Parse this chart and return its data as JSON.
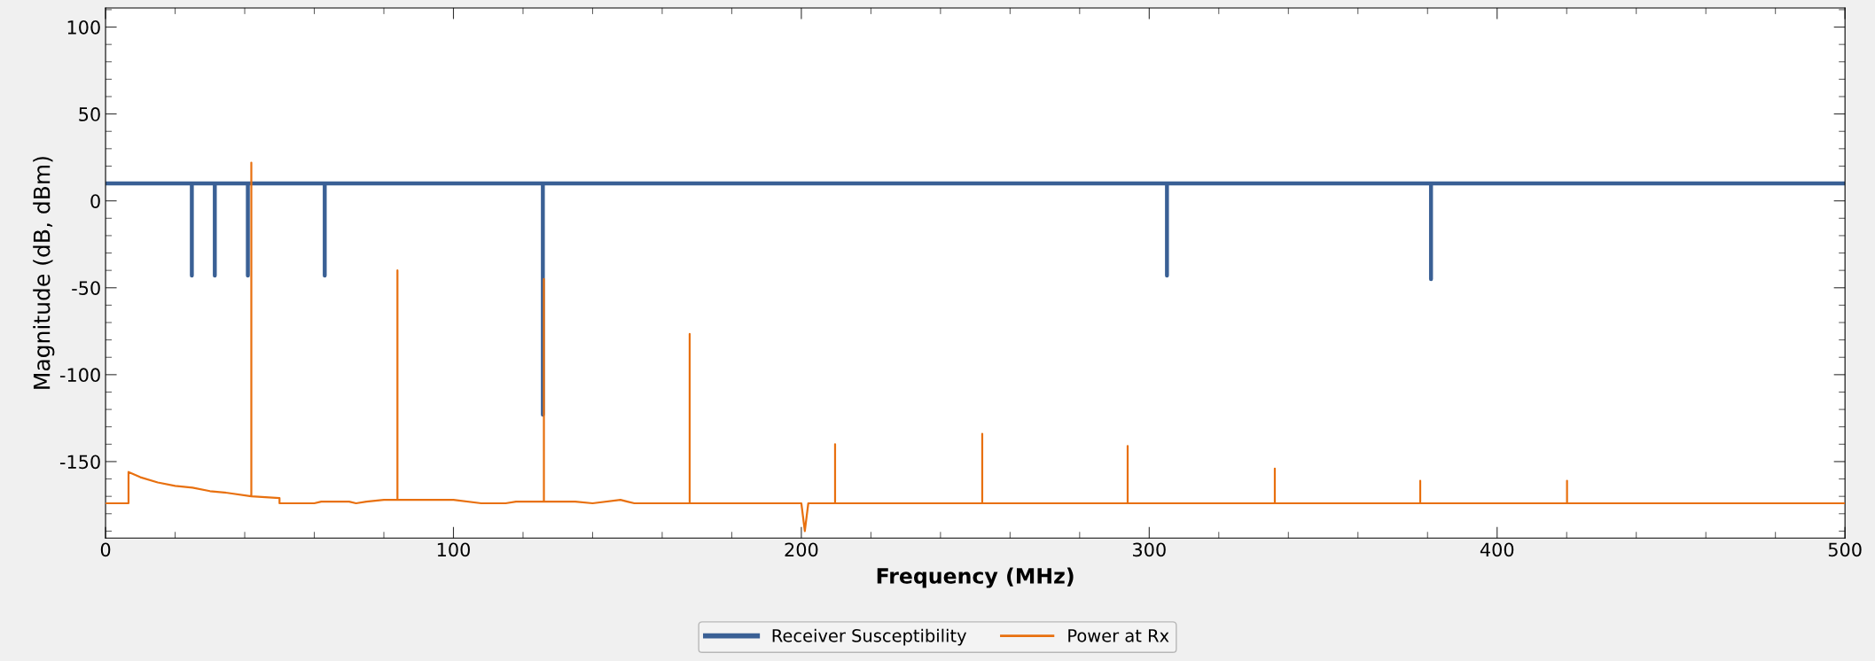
{
  "chart_data": {
    "type": "line",
    "xlabel": "Frequency (MHz)",
    "ylabel": "Magnitude (dB, dBm)",
    "xlim": [
      0,
      500
    ],
    "xticks": [
      0,
      100,
      200,
      300,
      400,
      500
    ],
    "ylim": [
      -194,
      111
    ],
    "yticks": [
      -150,
      -100,
      -50,
      0,
      50,
      100
    ],
    "grid": false,
    "legend": "bottom",
    "line_style": "solid",
    "marker": "none",
    "series": [
      {
        "name": "Receiver Susceptibility",
        "color": "#3a6095",
        "x": [
          0,
          24.8,
          24.8,
          24.8,
          31.4,
          31.4,
          31.4,
          40.9,
          40.9,
          40.9,
          63,
          63,
          63,
          125.7,
          125.7,
          125.7,
          305.1,
          305.1,
          305.1,
          381,
          381,
          381,
          500
        ],
        "values": [
          10,
          10,
          -43,
          10,
          10,
          -43,
          10,
          10,
          -43,
          10,
          10,
          -43,
          10,
          10,
          -123,
          10,
          10,
          -43,
          10,
          10,
          -45,
          10,
          10
        ]
      },
      {
        "name": "Power at Rx",
        "color": "#e8700f",
        "x": [
          0,
          6.6,
          6.6,
          10,
          15,
          20,
          25,
          30,
          35,
          41.9,
          41.9,
          41.9,
          50,
          50,
          60,
          62,
          70,
          72,
          75,
          80,
          83.9,
          83.9,
          83.9,
          100,
          108,
          115,
          118,
          126,
          126,
          126,
          135,
          140,
          148,
          150,
          152,
          167.9,
          167.9,
          167.9,
          200,
          201,
          202,
          209.7,
          209.7,
          209.7,
          252,
          252,
          252,
          293.8,
          293.8,
          293.8,
          336.1,
          336.1,
          336.1,
          377.9,
          377.9,
          377.9,
          420.1,
          420.1,
          420.1,
          500
        ],
        "values": [
          -174,
          -174,
          -156,
          -159,
          -162,
          -164,
          -165,
          -167,
          -168,
          -170,
          22,
          -170,
          -171,
          -174,
          -174,
          -173,
          -173,
          -174,
          -173,
          -172,
          -172,
          -40,
          -172,
          -172,
          -174,
          -174,
          -173,
          -173,
          -45,
          -173,
          -173,
          -174,
          -172,
          -173,
          -174,
          -174,
          -76.6,
          -174,
          -174,
          -190,
          -174,
          -174,
          -140,
          -174,
          -174,
          -134,
          -174,
          -174,
          -141,
          -174,
          -174,
          -154,
          -174,
          -174,
          -161,
          -174,
          -174,
          -161,
          -174,
          -174
        ]
      }
    ]
  }
}
